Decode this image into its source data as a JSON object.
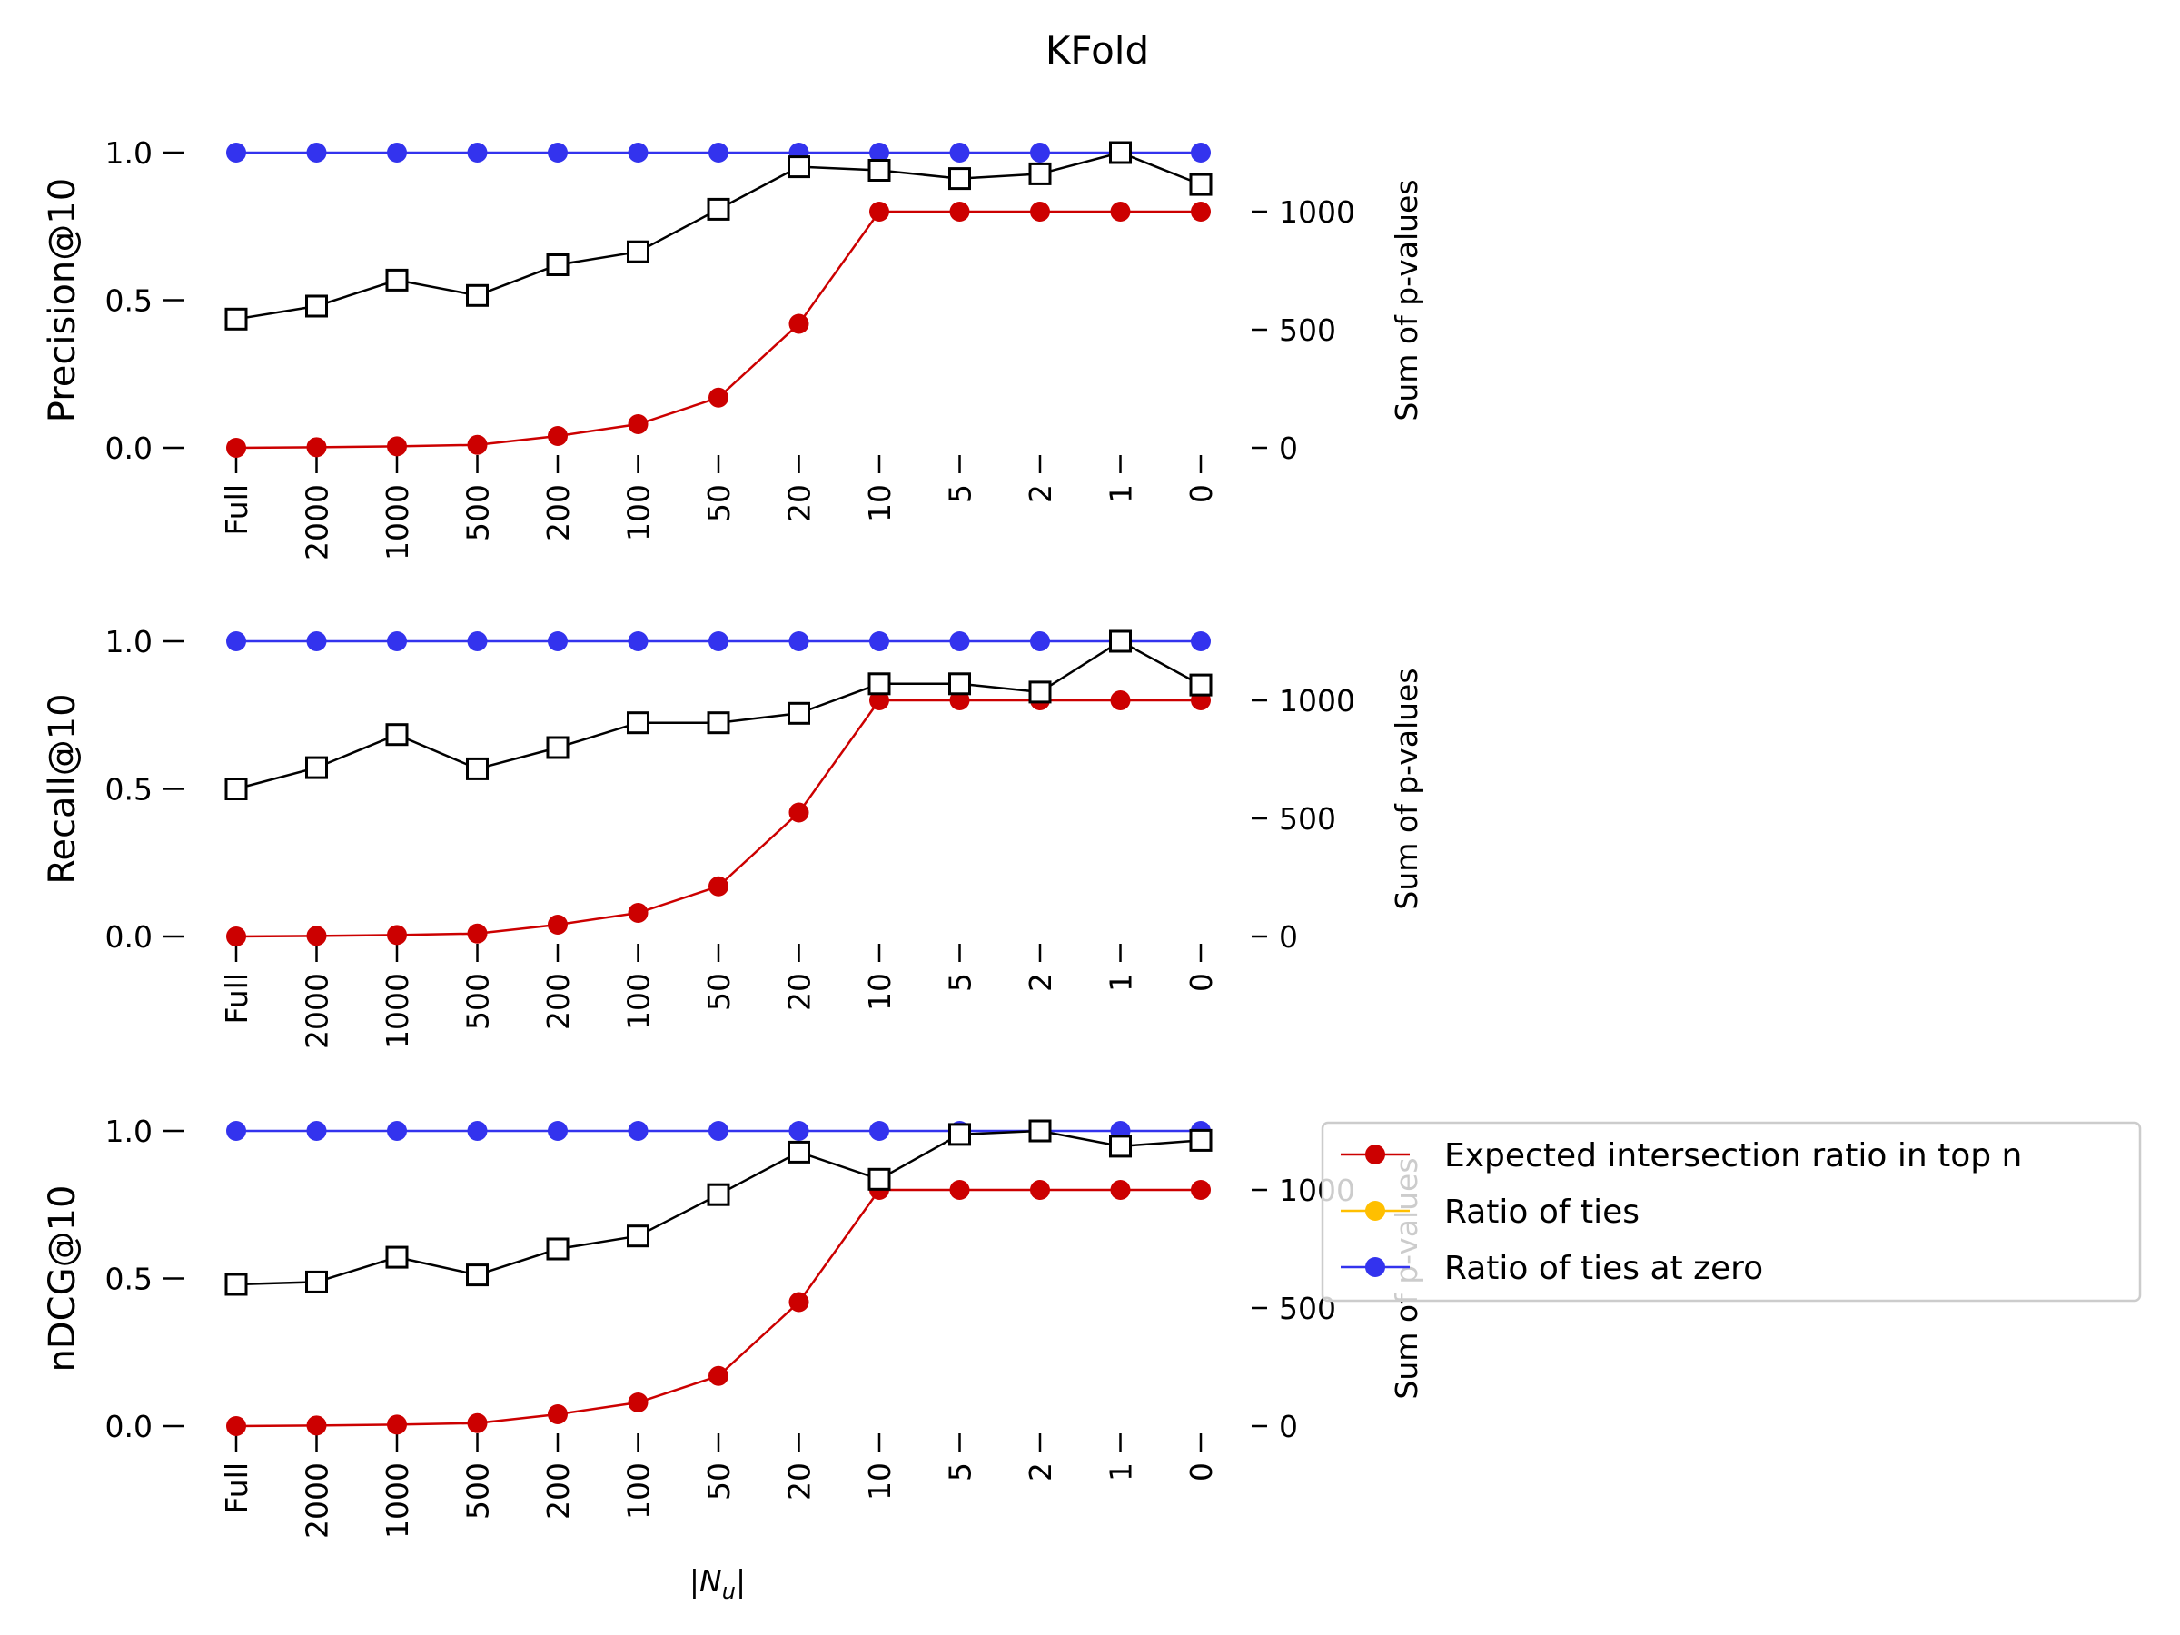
{
  "figure": {
    "title": "KFold",
    "xlabel": "|N_u|"
  },
  "legend": {
    "items": [
      {
        "label": "Expected intersection ratio in top n",
        "color": "#cc0000"
      },
      {
        "label": "Ratio of ties",
        "color": "#ffbf00"
      },
      {
        "label": "Ratio of ties at zero",
        "color": "#3333ee"
      }
    ]
  },
  "chart_data": [
    {
      "type": "line",
      "ylabel": "Precision@10",
      "right_ylabel": "Sum of p-values",
      "categories": [
        "Full",
        "2000",
        "1000",
        "500",
        "200",
        "100",
        "50",
        "20",
        "10",
        "5",
        "2",
        "1",
        "0"
      ],
      "ylim": [
        0,
        1.0
      ],
      "yticks": [
        "0.0",
        "0.5",
        "1.0"
      ],
      "right_ylim": [
        0,
        1250
      ],
      "right_yticks": [
        "0",
        "500",
        "1000"
      ],
      "series": [
        {
          "name": "Expected intersection ratio in top n",
          "axis": "left",
          "color": "#cc0000",
          "marker": "circle",
          "values": [
            0.0,
            0.002,
            0.005,
            0.01,
            0.04,
            0.08,
            0.17,
            0.42,
            0.8,
            0.8,
            0.8,
            0.8,
            0.8
          ]
        },
        {
          "name": "Ratio of ties at zero",
          "axis": "left",
          "color": "#3333ee",
          "marker": "circle",
          "values": [
            1,
            1,
            1,
            1,
            1,
            1,
            1,
            1,
            1,
            1,
            1,
            1,
            1
          ]
        },
        {
          "axis": "right",
          "color": "#000000",
          "marker": "square",
          "values": [
            545,
            600,
            710,
            645,
            775,
            830,
            1010,
            1190,
            1175,
            1140,
            1160,
            1250,
            1115
          ]
        }
      ]
    },
    {
      "type": "line",
      "ylabel": "Recall@10",
      "right_ylabel": "Sum of p-values",
      "categories": [
        "Full",
        "2000",
        "1000",
        "500",
        "200",
        "100",
        "50",
        "20",
        "10",
        "5",
        "2",
        "1",
        "0"
      ],
      "ylim": [
        0,
        1.0
      ],
      "yticks": [
        "0.0",
        "0.5",
        "1.0"
      ],
      "right_ylim": [
        0,
        1250
      ],
      "right_yticks": [
        "0",
        "500",
        "1000"
      ],
      "series": [
        {
          "name": "Expected intersection ratio in top n",
          "axis": "left",
          "color": "#cc0000",
          "marker": "circle",
          "values": [
            0.0,
            0.002,
            0.005,
            0.01,
            0.04,
            0.08,
            0.17,
            0.42,
            0.8,
            0.8,
            0.8,
            0.8,
            0.8
          ]
        },
        {
          "name": "Ratio of ties at zero",
          "axis": "left",
          "color": "#3333ee",
          "marker": "circle",
          "values": [
            1,
            1,
            1,
            1,
            1,
            1,
            1,
            1,
            1,
            1,
            1,
            1,
            1
          ]
        },
        {
          "axis": "right",
          "color": "#000000",
          "marker": "square",
          "values": [
            625,
            715,
            855,
            710,
            800,
            905,
            905,
            945,
            1070,
            1070,
            1035,
            1250,
            1065
          ]
        }
      ]
    },
    {
      "type": "line",
      "ylabel": "nDCG@10",
      "right_ylabel": "Sum of p-values",
      "categories": [
        "Full",
        "2000",
        "1000",
        "500",
        "200",
        "100",
        "50",
        "20",
        "10",
        "5",
        "2",
        "1",
        "0"
      ],
      "ylim": [
        0,
        1.0
      ],
      "yticks": [
        "0.0",
        "0.5",
        "1.0"
      ],
      "right_ylim": [
        0,
        1250
      ],
      "right_yticks": [
        "0",
        "500",
        "1000"
      ],
      "series": [
        {
          "name": "Expected intersection ratio in top n",
          "axis": "left",
          "color": "#cc0000",
          "marker": "circle",
          "values": [
            0.0,
            0.002,
            0.005,
            0.01,
            0.04,
            0.08,
            0.17,
            0.42,
            0.8,
            0.8,
            0.8,
            0.8,
            0.8
          ]
        },
        {
          "name": "Ratio of ties at zero",
          "axis": "left",
          "color": "#3333ee",
          "marker": "circle",
          "values": [
            1,
            1,
            1,
            1,
            1,
            1,
            1,
            1,
            1,
            1,
            1,
            1,
            1
          ]
        },
        {
          "axis": "right",
          "color": "#000000",
          "marker": "square",
          "values": [
            600,
            610,
            715,
            640,
            750,
            805,
            980,
            1160,
            1045,
            1235,
            1250,
            1185,
            1210
          ]
        }
      ]
    }
  ]
}
